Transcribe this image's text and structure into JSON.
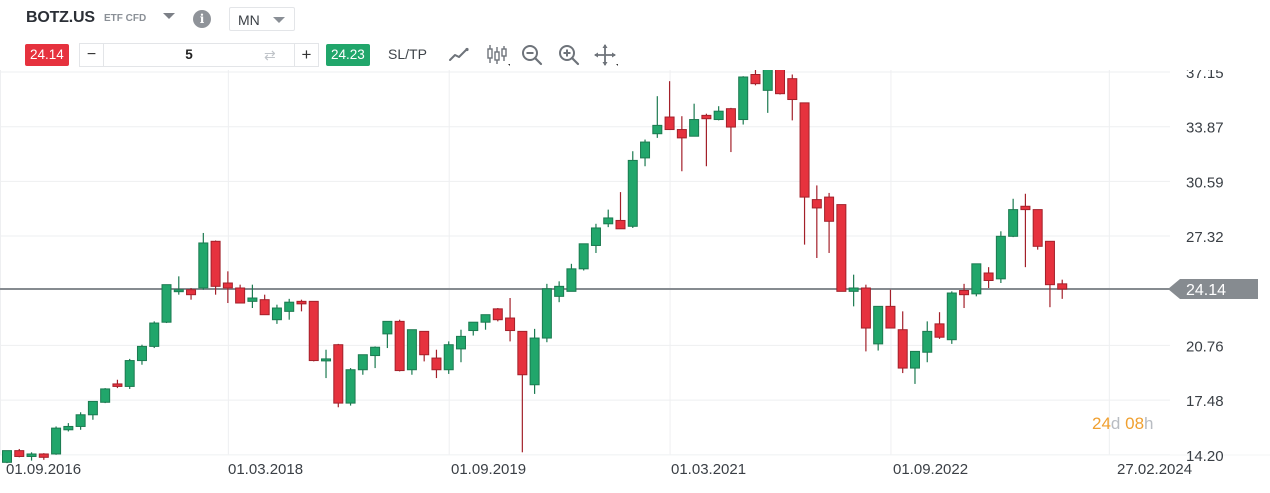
{
  "header": {
    "symbol": "BOTZ.US",
    "symbol_type": "ETF CFD",
    "timeframe": "MN"
  },
  "trade": {
    "sell_price": "24.14",
    "buy_price": "24.23",
    "quantity": "5",
    "minus_label": "−",
    "plus_label": "+",
    "sltp_label": "SL/TP"
  },
  "tools": [
    {
      "name": "line-chart-icon"
    },
    {
      "name": "candlestick-chart-icon"
    },
    {
      "name": "zoom-out-icon"
    },
    {
      "name": "zoom-in-icon"
    },
    {
      "name": "move-icon"
    }
  ],
  "colors": {
    "up": "#21a66b",
    "down": "#e6323e",
    "up_border": "#1b7a50",
    "down_border": "#a3202a",
    "price_line": "#868b90",
    "price_tag_bg": "#868b90",
    "grid": "#eeeff1",
    "countdown": "#f0a030"
  },
  "countdown": {
    "days": "24",
    "days_unit": "d",
    "hours": "08",
    "hours_unit": "h"
  },
  "chart_data": {
    "type": "candlestick",
    "title": "BOTZ.US ETF CFD — Monthly (MN)",
    "xlabel": "",
    "ylabel": "",
    "y_ticks": [
      "37.15",
      "33.87",
      "30.59",
      "27.32",
      "24.14",
      "20.76",
      "17.48",
      "14.20"
    ],
    "y_tick_values": [
      37.15,
      33.87,
      30.59,
      27.32,
      20.76,
      17.48,
      14.2
    ],
    "x_ticks": [
      "01.09.2016",
      "01.03.2018",
      "01.09.2019",
      "01.03.2021",
      "01.09.2022",
      "27.02.2024"
    ],
    "ylim": [
      13.5,
      39.5
    ],
    "current_price": 24.14,
    "current_price_label": "24.14",
    "grid": true,
    "start": "2016-09",
    "interval": "1 month",
    "candles": [
      {
        "o": 13.75,
        "h": 14.35,
        "l": 13.7,
        "c": 14.45
      },
      {
        "o": 14.45,
        "h": 14.55,
        "l": 14.05,
        "c": 14.1
      },
      {
        "o": 14.1,
        "h": 14.35,
        "l": 13.85,
        "c": 14.25
      },
      {
        "o": 14.25,
        "h": 14.3,
        "l": 13.9,
        "c": 14.05
      },
      {
        "o": 14.25,
        "h": 15.9,
        "l": 14.2,
        "c": 15.8
      },
      {
        "o": 15.7,
        "h": 16.1,
        "l": 15.6,
        "c": 15.9
      },
      {
        "o": 15.9,
        "h": 16.75,
        "l": 15.7,
        "c": 16.6
      },
      {
        "o": 16.6,
        "h": 17.4,
        "l": 16.3,
        "c": 17.4
      },
      {
        "o": 17.35,
        "h": 18.2,
        "l": 17.3,
        "c": 18.15
      },
      {
        "o": 18.45,
        "h": 18.7,
        "l": 18.2,
        "c": 18.3
      },
      {
        "o": 18.3,
        "h": 19.95,
        "l": 18.15,
        "c": 19.85
      },
      {
        "o": 19.85,
        "h": 20.8,
        "l": 19.6,
        "c": 20.7
      },
      {
        "o": 20.7,
        "h": 22.2,
        "l": 20.6,
        "c": 22.1
      },
      {
        "o": 22.15,
        "h": 24.4,
        "l": 22.1,
        "c": 24.4
      },
      {
        "o": 24.0,
        "h": 24.9,
        "l": 23.8,
        "c": 24.1
      },
      {
        "o": 24.1,
        "h": 24.2,
        "l": 23.5,
        "c": 23.8
      },
      {
        "o": 24.2,
        "h": 27.5,
        "l": 24.1,
        "c": 26.9
      },
      {
        "o": 27.0,
        "h": 27.05,
        "l": 23.8,
        "c": 24.3
      },
      {
        "o": 24.5,
        "h": 25.2,
        "l": 23.3,
        "c": 24.2
      },
      {
        "o": 24.2,
        "h": 24.4,
        "l": 23.3,
        "c": 23.3
      },
      {
        "o": 23.4,
        "h": 24.4,
        "l": 23.0,
        "c": 23.6
      },
      {
        "o": 23.5,
        "h": 23.8,
        "l": 22.7,
        "c": 22.6
      },
      {
        "o": 22.3,
        "h": 23.2,
        "l": 22.05,
        "c": 23.0
      },
      {
        "o": 22.8,
        "h": 23.55,
        "l": 22.3,
        "c": 23.35
      },
      {
        "o": 23.4,
        "h": 23.5,
        "l": 22.8,
        "c": 23.25
      },
      {
        "o": 23.4,
        "h": 23.4,
        "l": 19.8,
        "c": 19.85
      },
      {
        "o": 19.9,
        "h": 20.5,
        "l": 18.8,
        "c": 19.95
      },
      {
        "o": 20.8,
        "h": 20.85,
        "l": 17.05,
        "c": 17.3
      },
      {
        "o": 17.3,
        "h": 19.4,
        "l": 17.15,
        "c": 19.3
      },
      {
        "o": 19.3,
        "h": 20.2,
        "l": 19.0,
        "c": 20.2
      },
      {
        "o": 20.15,
        "h": 20.7,
        "l": 19.4,
        "c": 20.65
      },
      {
        "o": 21.45,
        "h": 21.85,
        "l": 20.6,
        "c": 22.2
      },
      {
        "o": 22.2,
        "h": 22.3,
        "l": 19.2,
        "c": 19.25
      },
      {
        "o": 19.3,
        "h": 21.7,
        "l": 19.0,
        "c": 21.7
      },
      {
        "o": 21.6,
        "h": 21.6,
        "l": 19.8,
        "c": 20.2
      },
      {
        "o": 20.0,
        "h": 20.5,
        "l": 18.8,
        "c": 19.3
      },
      {
        "o": 19.3,
        "h": 21.0,
        "l": 19.05,
        "c": 20.8
      },
      {
        "o": 20.55,
        "h": 21.7,
        "l": 19.75,
        "c": 21.3
      },
      {
        "o": 21.65,
        "h": 22.1,
        "l": 21.35,
        "c": 22.15
      },
      {
        "o": 22.15,
        "h": 22.55,
        "l": 21.7,
        "c": 22.6
      },
      {
        "o": 22.95,
        "h": 23.0,
        "l": 22.2,
        "c": 22.3
      },
      {
        "o": 22.4,
        "h": 23.6,
        "l": 21.0,
        "c": 21.65
      },
      {
        "o": 21.6,
        "h": 21.6,
        "l": 14.35,
        "c": 19.0
      },
      {
        "o": 18.4,
        "h": 21.75,
        "l": 17.85,
        "c": 21.2
      },
      {
        "o": 21.2,
        "h": 24.45,
        "l": 20.95,
        "c": 24.15
      },
      {
        "o": 23.7,
        "h": 24.6,
        "l": 23.35,
        "c": 24.3
      },
      {
        "o": 24.0,
        "h": 25.65,
        "l": 24.0,
        "c": 25.35
      },
      {
        "o": 25.35,
        "h": 26.75,
        "l": 25.25,
        "c": 26.85
      },
      {
        "o": 26.75,
        "h": 28.05,
        "l": 26.3,
        "c": 27.8
      },
      {
        "o": 28.05,
        "h": 28.9,
        "l": 27.85,
        "c": 28.4
      },
      {
        "o": 28.25,
        "h": 29.95,
        "l": 27.95,
        "c": 27.75
      },
      {
        "o": 27.9,
        "h": 32.4,
        "l": 27.8,
        "c": 31.85
      },
      {
        "o": 32.0,
        "h": 33.1,
        "l": 31.5,
        "c": 32.95
      },
      {
        "o": 33.45,
        "h": 35.7,
        "l": 33.2,
        "c": 33.95
      },
      {
        "o": 34.45,
        "h": 36.6,
        "l": 33.9,
        "c": 33.7
      },
      {
        "o": 33.7,
        "h": 34.5,
        "l": 31.2,
        "c": 33.2
      },
      {
        "o": 33.3,
        "h": 35.25,
        "l": 33.3,
        "c": 34.3
      },
      {
        "o": 34.55,
        "h": 34.65,
        "l": 31.5,
        "c": 34.35
      },
      {
        "o": 34.3,
        "h": 35.1,
        "l": 34.25,
        "c": 34.8
      },
      {
        "o": 34.95,
        "h": 35.0,
        "l": 32.35,
        "c": 33.85
      },
      {
        "o": 34.3,
        "h": 36.9,
        "l": 34.0,
        "c": 36.85
      },
      {
        "o": 37.0,
        "h": 39.1,
        "l": 36.35,
        "c": 36.45
      },
      {
        "o": 36.05,
        "h": 37.9,
        "l": 34.7,
        "c": 37.65
      },
      {
        "o": 37.85,
        "h": 39.6,
        "l": 35.8,
        "c": 35.85
      },
      {
        "o": 36.75,
        "h": 37.0,
        "l": 34.25,
        "c": 35.5
      },
      {
        "o": 35.3,
        "h": 35.3,
        "l": 26.8,
        "c": 29.65
      },
      {
        "o": 29.5,
        "h": 30.35,
        "l": 26.0,
        "c": 29.0
      },
      {
        "o": 29.65,
        "h": 29.9,
        "l": 26.3,
        "c": 28.2
      },
      {
        "o": 29.2,
        "h": 29.2,
        "l": 24.75,
        "c": 24.0
      },
      {
        "o": 24.0,
        "h": 25.0,
        "l": 23.1,
        "c": 24.2
      },
      {
        "o": 24.2,
        "h": 24.4,
        "l": 20.4,
        "c": 21.8
      },
      {
        "o": 20.85,
        "h": 23.1,
        "l": 20.45,
        "c": 23.1
      },
      {
        "o": 23.1,
        "h": 24.1,
        "l": 21.8,
        "c": 21.8
      },
      {
        "o": 21.7,
        "h": 22.8,
        "l": 19.1,
        "c": 19.4
      },
      {
        "o": 19.4,
        "h": 20.4,
        "l": 18.45,
        "c": 20.4
      },
      {
        "o": 20.35,
        "h": 22.2,
        "l": 19.75,
        "c": 21.6
      },
      {
        "o": 22.05,
        "h": 22.75,
        "l": 21.15,
        "c": 21.25
      },
      {
        "o": 21.1,
        "h": 24.0,
        "l": 20.85,
        "c": 23.9
      },
      {
        "o": 24.05,
        "h": 24.45,
        "l": 23.0,
        "c": 23.8
      },
      {
        "o": 23.85,
        "h": 25.3,
        "l": 23.7,
        "c": 25.65
      },
      {
        "o": 25.1,
        "h": 25.45,
        "l": 24.2,
        "c": 24.65
      },
      {
        "o": 24.75,
        "h": 27.6,
        "l": 24.5,
        "c": 27.3
      },
      {
        "o": 27.3,
        "h": 29.55,
        "l": 27.25,
        "c": 28.9
      },
      {
        "o": 29.1,
        "h": 29.85,
        "l": 25.45,
        "c": 28.9
      },
      {
        "o": 28.9,
        "h": 28.9,
        "l": 26.5,
        "c": 26.7
      },
      {
        "o": 27.0,
        "h": 27.0,
        "l": 23.05,
        "c": 24.4
      },
      {
        "o": 24.45,
        "h": 24.7,
        "l": 23.55,
        "c": 24.14
      }
    ]
  }
}
